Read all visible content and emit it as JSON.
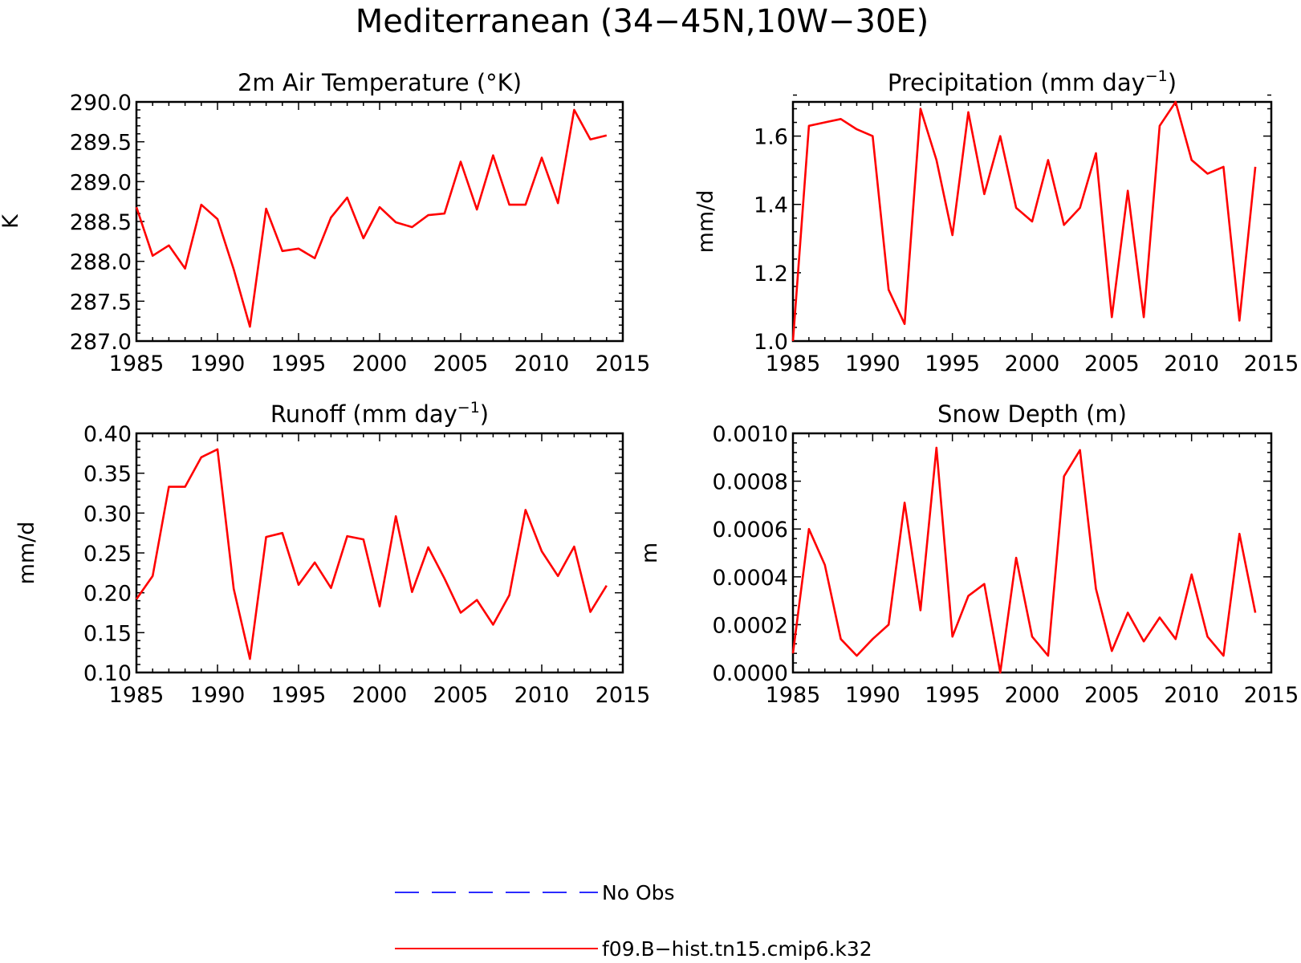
{
  "figure_title": "Mediterranean (34−45N,10W−30E)",
  "legend": [
    {
      "label": "No Obs",
      "color": "#2b2bff",
      "dash": "dashed"
    },
    {
      "label": "f09.B−hist.tn15.cmip6.k32",
      "color": "#ff0000",
      "dash": "solid"
    }
  ],
  "chart_data": [
    {
      "type": "line",
      "title": "2m Air Temperature (°K)",
      "title_sup": "",
      "title_end": "",
      "ylabel": "K",
      "xlabel": "",
      "xlim": [
        1985,
        2015
      ],
      "ylim": [
        287.0,
        290.0
      ],
      "xticks": [
        1985,
        1990,
        1995,
        2000,
        2005,
        2010,
        2015
      ],
      "yticks": [
        "287.0",
        "287.5",
        "288.0",
        "288.5",
        "289.0",
        "289.5",
        "290.0"
      ],
      "series": [
        {
          "color": "#ff0000",
          "x": [
            1985,
            1986,
            1987,
            1988,
            1989,
            1990,
            1991,
            1992,
            1993,
            1994,
            1995,
            1996,
            1997,
            1998,
            1999,
            2000,
            2001,
            2002,
            2003,
            2004,
            2005,
            2006,
            2007,
            2008,
            2009,
            2010,
            2011,
            2012,
            2013,
            2014
          ],
          "values": [
            288.68,
            288.07,
            288.2,
            287.91,
            288.71,
            288.53,
            287.9,
            287.18,
            288.66,
            288.13,
            288.16,
            288.04,
            288.55,
            288.8,
            288.29,
            288.68,
            288.49,
            288.43,
            288.58,
            288.6,
            289.25,
            288.65,
            289.33,
            288.71,
            288.71,
            289.3,
            288.73,
            289.9,
            289.53,
            289.58
          ]
        }
      ]
    },
    {
      "type": "line",
      "title": "Precipitation (mm day",
      "title_sup": "−1",
      "title_end": ")",
      "ylabel": "mm/d",
      "xlabel": "",
      "xlim": [
        1985,
        2015
      ],
      "ylim": [
        1.0,
        1.7
      ],
      "xticks": [
        1985,
        1990,
        1995,
        2000,
        2005,
        2010,
        2015
      ],
      "yticks": [
        "1.0",
        "1.2",
        "1.4",
        "1.6"
      ],
      "series": [
        {
          "color": "#ff0000",
          "x": [
            1985,
            1986,
            1987,
            1988,
            1989,
            1990,
            1991,
            1992,
            1993,
            1994,
            1995,
            1996,
            1997,
            1998,
            1999,
            2000,
            2001,
            2002,
            2003,
            2004,
            2005,
            2006,
            2007,
            2008,
            2009,
            2010,
            2011,
            2012,
            2013,
            2014
          ],
          "values": [
            1.0,
            1.63,
            1.64,
            1.65,
            1.62,
            1.6,
            1.15,
            1.05,
            1.68,
            1.53,
            1.31,
            1.67,
            1.43,
            1.6,
            1.39,
            1.35,
            1.53,
            1.34,
            1.39,
            1.55,
            1.07,
            1.44,
            1.07,
            1.63,
            1.7,
            1.53,
            1.49,
            1.51,
            1.06,
            1.51
          ]
        }
      ]
    },
    {
      "type": "line",
      "title": "Runoff (mm day",
      "title_sup": "−1",
      "title_end": ")",
      "ylabel": "mm/d",
      "xlabel": "",
      "xlim": [
        1985,
        2015
      ],
      "ylim": [
        0.1,
        0.4
      ],
      "xticks": [
        1985,
        1990,
        1995,
        2000,
        2005,
        2010,
        2015
      ],
      "yticks": [
        "0.10",
        "0.15",
        "0.20",
        "0.25",
        "0.30",
        "0.35",
        "0.40"
      ],
      "series": [
        {
          "color": "#ff0000",
          "x": [
            1985,
            1986,
            1987,
            1988,
            1989,
            1990,
            1991,
            1992,
            1993,
            1994,
            1995,
            1996,
            1997,
            1998,
            1999,
            2000,
            2001,
            2002,
            2003,
            2004,
            2005,
            2006,
            2007,
            2008,
            2009,
            2010,
            2011,
            2012,
            2013,
            2014
          ],
          "values": [
            0.192,
            0.221,
            0.333,
            0.333,
            0.37,
            0.38,
            0.205,
            0.117,
            0.27,
            0.275,
            0.21,
            0.238,
            0.206,
            0.271,
            0.267,
            0.183,
            0.296,
            0.201,
            0.257,
            0.218,
            0.175,
            0.191,
            0.16,
            0.197,
            0.304,
            0.252,
            0.221,
            0.258,
            0.176,
            0.209
          ]
        }
      ]
    },
    {
      "type": "line",
      "title": "Snow Depth (m)",
      "title_sup": "",
      "title_end": "",
      "ylabel": "m",
      "xlabel": "",
      "xlim": [
        1985,
        2015
      ],
      "ylim": [
        0.0,
        0.001
      ],
      "xticks": [
        1985,
        1990,
        1995,
        2000,
        2005,
        2010,
        2015
      ],
      "yticks": [
        "0.0000",
        "0.0002",
        "0.0004",
        "0.0006",
        "0.0008",
        "0.0010"
      ],
      "series": [
        {
          "color": "#ff0000",
          "x": [
            1985,
            1986,
            1987,
            1988,
            1989,
            1990,
            1991,
            1992,
            1993,
            1994,
            1995,
            1996,
            1997,
            1998,
            1999,
            2000,
            2001,
            2002,
            2003,
            2004,
            2005,
            2006,
            2007,
            2008,
            2009,
            2010,
            2011,
            2012,
            2013,
            2014
          ],
          "values": [
            8e-05,
            0.0006,
            0.00045,
            0.00014,
            7e-05,
            0.00014,
            0.0002,
            0.00071,
            0.00026,
            0.00094,
            0.00015,
            0.00032,
            0.00037,
            0.0,
            0.00048,
            0.00015,
            7e-05,
            0.00082,
            0.00093,
            0.00035,
            9e-05,
            0.00025,
            0.00013,
            0.00023,
            0.00014,
            0.00041,
            0.00015,
            7e-05,
            0.00058,
            0.00025
          ]
        }
      ]
    }
  ]
}
